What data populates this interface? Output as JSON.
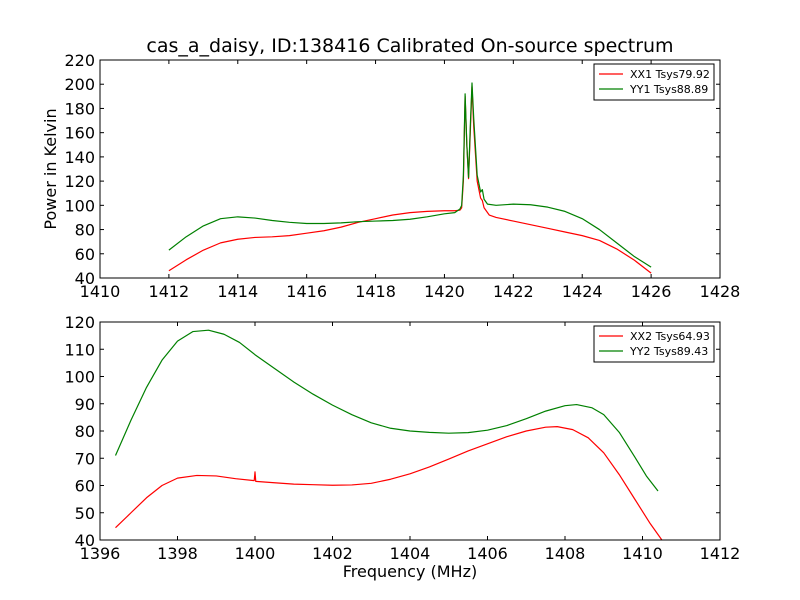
{
  "title": "cas_a_daisy, ID:138416 Calibrated On-source spectrum",
  "colors": {
    "xx": "#ff0000",
    "yy": "#008000"
  },
  "chart_data": [
    {
      "type": "line",
      "title": "cas_a_daisy, ID:138416 Calibrated On-source spectrum",
      "xlabel": "",
      "ylabel": "Power in Kelvin",
      "xlim": [
        1410,
        1428
      ],
      "ylim": [
        40,
        220
      ],
      "xticks": [
        1410,
        1412,
        1414,
        1416,
        1418,
        1420,
        1422,
        1424,
        1426,
        1428
      ],
      "yticks": [
        40,
        60,
        80,
        100,
        120,
        140,
        160,
        180,
        200,
        220
      ],
      "legend_position": "top-right",
      "grid": false,
      "series": [
        {
          "name": "XX1 Tsys79.92",
          "color": "#ff0000",
          "points": [
            [
              1412.0,
              46
            ],
            [
              1412.5,
              55
            ],
            [
              1413.0,
              63
            ],
            [
              1413.5,
              69
            ],
            [
              1414.0,
              72
            ],
            [
              1414.5,
              73.5
            ],
            [
              1415.0,
              74
            ],
            [
              1415.5,
              75
            ],
            [
              1416.0,
              77
            ],
            [
              1416.5,
              79
            ],
            [
              1417.0,
              82
            ],
            [
              1417.5,
              86
            ],
            [
              1418.0,
              89
            ],
            [
              1418.5,
              92
            ],
            [
              1419.0,
              94
            ],
            [
              1419.5,
              95
            ],
            [
              1420.0,
              95.5
            ],
            [
              1420.3,
              95.5
            ],
            [
              1420.45,
              96
            ],
            [
              1420.5,
              98
            ],
            [
              1420.55,
              120
            ],
            [
              1420.6,
              190
            ],
            [
              1420.65,
              150
            ],
            [
              1420.7,
              122
            ],
            [
              1420.75,
              160
            ],
            [
              1420.8,
              198
            ],
            [
              1420.85,
              165
            ],
            [
              1420.95,
              120
            ],
            [
              1421.05,
              106
            ],
            [
              1421.1,
              104
            ],
            [
              1421.15,
              98
            ],
            [
              1421.3,
              92
            ],
            [
              1421.5,
              90
            ],
            [
              1422.0,
              87
            ],
            [
              1422.5,
              84
            ],
            [
              1423.0,
              81
            ],
            [
              1423.5,
              78
            ],
            [
              1424.0,
              75
            ],
            [
              1424.5,
              71
            ],
            [
              1425.0,
              64
            ],
            [
              1425.5,
              55
            ],
            [
              1426.0,
              44
            ]
          ]
        },
        {
          "name": "YY1 Tsys88.89",
          "color": "#008000",
          "points": [
            [
              1412.0,
              63
            ],
            [
              1412.5,
              74
            ],
            [
              1413.0,
              83
            ],
            [
              1413.5,
              89
            ],
            [
              1414.0,
              90.5
            ],
            [
              1414.5,
              89.5
            ],
            [
              1415.0,
              87.5
            ],
            [
              1415.5,
              86
            ],
            [
              1416.0,
              85
            ],
            [
              1416.5,
              85
            ],
            [
              1417.0,
              85.5
            ],
            [
              1417.5,
              86.5
            ],
            [
              1418.0,
              87
            ],
            [
              1418.5,
              87.5
            ],
            [
              1419.0,
              88.5
            ],
            [
              1419.5,
              90.5
            ],
            [
              1420.0,
              93
            ],
            [
              1420.3,
              94
            ],
            [
              1420.45,
              97
            ],
            [
              1420.5,
              100
            ],
            [
              1420.55,
              125
            ],
            [
              1420.6,
              192
            ],
            [
              1420.65,
              150
            ],
            [
              1420.7,
              123
            ],
            [
              1420.75,
              165
            ],
            [
              1420.8,
              201
            ],
            [
              1420.85,
              172
            ],
            [
              1420.95,
              125
            ],
            [
              1421.05,
              111
            ],
            [
              1421.1,
              113
            ],
            [
              1421.15,
              105
            ],
            [
              1421.25,
              101
            ],
            [
              1421.5,
              100
            ],
            [
              1422.0,
              101
            ],
            [
              1422.5,
              100.5
            ],
            [
              1423.0,
              98.5
            ],
            [
              1423.5,
              95
            ],
            [
              1424.0,
              89
            ],
            [
              1424.5,
              80
            ],
            [
              1425.0,
              69
            ],
            [
              1425.5,
              58
            ],
            [
              1426.0,
              49
            ]
          ]
        }
      ]
    },
    {
      "type": "line",
      "title": "",
      "xlabel": "Frequency (MHz)",
      "ylabel": "",
      "xlim": [
        1396,
        1412
      ],
      "ylim": [
        40,
        120
      ],
      "xticks": [
        1396,
        1398,
        1400,
        1402,
        1404,
        1406,
        1408,
        1410,
        1412
      ],
      "yticks": [
        40,
        50,
        60,
        70,
        80,
        90,
        100,
        110,
        120
      ],
      "legend_position": "top-right",
      "grid": false,
      "series": [
        {
          "name": "XX2 Tsys64.93",
          "color": "#ff0000",
          "points": [
            [
              1396.4,
              44.5
            ],
            [
              1396.8,
              50
            ],
            [
              1397.2,
              55.5
            ],
            [
              1397.6,
              60
            ],
            [
              1398.0,
              62.7
            ],
            [
              1398.5,
              63.7
            ],
            [
              1399.0,
              63.5
            ],
            [
              1399.5,
              62.5
            ],
            [
              1399.98,
              61.8
            ],
            [
              1400.0,
              65
            ],
            [
              1400.02,
              61.5
            ],
            [
              1400.5,
              61
            ],
            [
              1401.0,
              60.5
            ],
            [
              1401.5,
              60.3
            ],
            [
              1402.0,
              60.1
            ],
            [
              1402.5,
              60.2
            ],
            [
              1403.0,
              60.8
            ],
            [
              1403.5,
              62.3
            ],
            [
              1404.0,
              64.3
            ],
            [
              1404.5,
              66.8
            ],
            [
              1405.0,
              69.7
            ],
            [
              1405.5,
              72.7
            ],
            [
              1406.0,
              75.3
            ],
            [
              1406.5,
              77.9
            ],
            [
              1407.0,
              80
            ],
            [
              1407.5,
              81.4
            ],
            [
              1407.8,
              81.6
            ],
            [
              1408.2,
              80.5
            ],
            [
              1408.6,
              77.5
            ],
            [
              1409.0,
              72
            ],
            [
              1409.4,
              64
            ],
            [
              1409.8,
              55
            ],
            [
              1410.2,
              46
            ],
            [
              1410.5,
              40
            ]
          ]
        },
        {
          "name": "YY2 Tsys89.43",
          "color": "#008000",
          "points": [
            [
              1396.4,
              71
            ],
            [
              1396.8,
              84
            ],
            [
              1397.2,
              96
            ],
            [
              1397.6,
              106
            ],
            [
              1398.0,
              113
            ],
            [
              1398.4,
              116.5
            ],
            [
              1398.8,
              117
            ],
            [
              1399.2,
              115.5
            ],
            [
              1399.6,
              112.5
            ],
            [
              1400.0,
              108
            ],
            [
              1400.5,
              103
            ],
            [
              1401.0,
              98
            ],
            [
              1401.5,
              93.5
            ],
            [
              1402.0,
              89.5
            ],
            [
              1402.5,
              86
            ],
            [
              1403.0,
              83
            ],
            [
              1403.5,
              81
            ],
            [
              1404.0,
              80
            ],
            [
              1404.5,
              79.5
            ],
            [
              1405.0,
              79.2
            ],
            [
              1405.5,
              79.4
            ],
            [
              1406.0,
              80.3
            ],
            [
              1406.5,
              82
            ],
            [
              1407.0,
              84.5
            ],
            [
              1407.5,
              87.3
            ],
            [
              1408.0,
              89.3
            ],
            [
              1408.3,
              89.7
            ],
            [
              1408.7,
              88.5
            ],
            [
              1409.0,
              86
            ],
            [
              1409.4,
              79.5
            ],
            [
              1409.8,
              70.5
            ],
            [
              1410.1,
              63.5
            ],
            [
              1410.4,
              58
            ]
          ]
        }
      ]
    }
  ]
}
